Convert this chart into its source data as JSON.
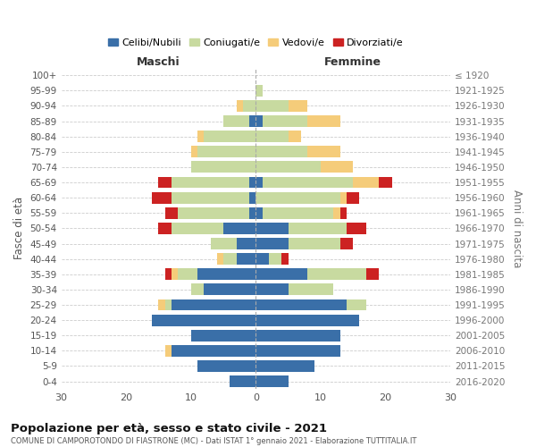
{
  "age_groups": [
    "0-4",
    "5-9",
    "10-14",
    "15-19",
    "20-24",
    "25-29",
    "30-34",
    "35-39",
    "40-44",
    "45-49",
    "50-54",
    "55-59",
    "60-64",
    "65-69",
    "70-74",
    "75-79",
    "80-84",
    "85-89",
    "90-94",
    "95-99",
    "100+"
  ],
  "birth_years": [
    "2016-2020",
    "2011-2015",
    "2006-2010",
    "2001-2005",
    "1996-2000",
    "1991-1995",
    "1986-1990",
    "1981-1985",
    "1976-1980",
    "1971-1975",
    "1966-1970",
    "1961-1965",
    "1956-1960",
    "1951-1955",
    "1946-1950",
    "1941-1945",
    "1936-1940",
    "1931-1935",
    "1926-1930",
    "1921-1925",
    "≤ 1920"
  ],
  "maschi": {
    "celibi": [
      4,
      9,
      13,
      10,
      16,
      13,
      8,
      9,
      3,
      3,
      5,
      1,
      1,
      1,
      0,
      0,
      0,
      1,
      0,
      0,
      0
    ],
    "coniugati": [
      0,
      0,
      0,
      0,
      0,
      1,
      2,
      3,
      2,
      4,
      8,
      11,
      12,
      12,
      10,
      9,
      8,
      4,
      2,
      0,
      0
    ],
    "vedovi": [
      0,
      0,
      1,
      0,
      0,
      1,
      0,
      1,
      1,
      0,
      0,
      0,
      0,
      0,
      0,
      1,
      1,
      0,
      1,
      0,
      0
    ],
    "divorziati": [
      0,
      0,
      0,
      0,
      0,
      0,
      0,
      1,
      0,
      0,
      2,
      2,
      3,
      2,
      0,
      0,
      0,
      0,
      0,
      0,
      0
    ]
  },
  "femmine": {
    "nubili": [
      5,
      9,
      13,
      13,
      16,
      14,
      5,
      8,
      2,
      5,
      5,
      1,
      0,
      1,
      0,
      0,
      0,
      1,
      0,
      0,
      0
    ],
    "coniugate": [
      0,
      0,
      0,
      0,
      0,
      3,
      7,
      9,
      2,
      8,
      9,
      11,
      13,
      14,
      10,
      8,
      5,
      7,
      5,
      1,
      0
    ],
    "vedove": [
      0,
      0,
      0,
      0,
      0,
      0,
      0,
      0,
      0,
      0,
      0,
      1,
      1,
      4,
      5,
      5,
      2,
      5,
      3,
      0,
      0
    ],
    "divorziate": [
      0,
      0,
      0,
      0,
      0,
      0,
      0,
      2,
      1,
      2,
      3,
      1,
      2,
      2,
      0,
      0,
      0,
      0,
      0,
      0,
      0
    ]
  },
  "colors": {
    "celibi": "#3a6fa8",
    "coniugati": "#c8daa0",
    "vedovi": "#f5cc7a",
    "divorziati": "#cc2222"
  },
  "xlim": 30,
  "title": "Popolazione per età, sesso e stato civile - 2021",
  "subtitle": "COMUNE DI CAMPOROTONDO DI FIASTRONE (MC) - Dati ISTAT 1° gennaio 2021 - Elaborazione TUTTITALIA.IT",
  "legend_labels": [
    "Celibi/Nubili",
    "Coniugati/e",
    "Vedovi/e",
    "Divorziati/e"
  ],
  "ylabel_left": "Fasce di età",
  "ylabel_right": "Anni di nascita",
  "xlabel_maschi": "Maschi",
  "xlabel_femmine": "Femmine"
}
